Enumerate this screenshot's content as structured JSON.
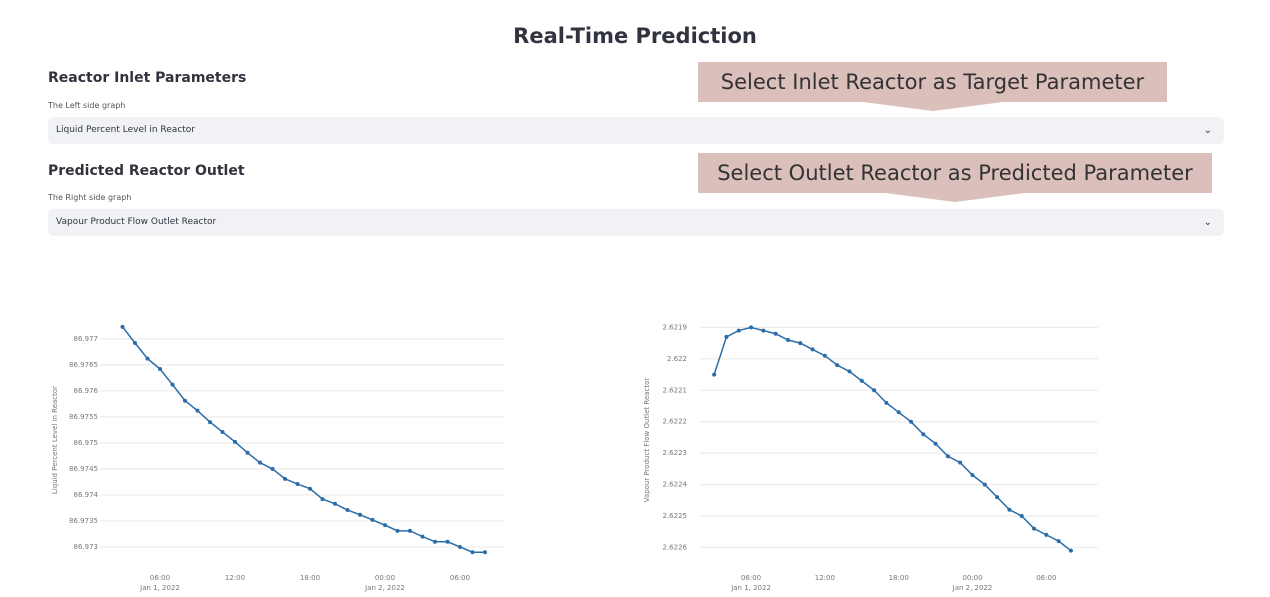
{
  "header": {
    "title": "Real-Time Prediction"
  },
  "sections": [
    {
      "heading": "Reactor Inlet Parameters",
      "caption": "The Left side graph",
      "selected": "Liquid Percent Level in Reactor",
      "callout": "Select Inlet Reactor as Target Parameter"
    },
    {
      "heading": "Predicted Reactor Outlet",
      "caption": "The Right side graph",
      "selected": "Vapour Product Flow Outlet Reactor",
      "callout": "Select Outlet Reactor as Predicted Parameter"
    }
  ],
  "chart_data": [
    {
      "type": "line",
      "y_label": "Liquid Percent Level in Reactor",
      "color": "#2a6ca8",
      "grid": true,
      "x": [
        "2022-01-01 03:00",
        "2022-01-01 04:00",
        "2022-01-01 05:00",
        "2022-01-01 06:00",
        "2022-01-01 07:00",
        "2022-01-01 08:00",
        "2022-01-01 09:00",
        "2022-01-01 10:00",
        "2022-01-01 11:00",
        "2022-01-01 12:00",
        "2022-01-01 13:00",
        "2022-01-01 14:00",
        "2022-01-01 15:00",
        "2022-01-01 16:00",
        "2022-01-01 17:00",
        "2022-01-01 18:00",
        "2022-01-01 19:00",
        "2022-01-01 20:00",
        "2022-01-01 21:00",
        "2022-01-01 22:00",
        "2022-01-01 23:00",
        "2022-01-02 00:00",
        "2022-01-02 01:00",
        "2022-01-02 02:00",
        "2022-01-02 03:00",
        "2022-01-02 04:00",
        "2022-01-02 05:00",
        "2022-01-02 06:00",
        "2022-01-02 07:00",
        "2022-01-02 08:00"
      ],
      "values": [
        86.97723,
        86.97692,
        86.97662,
        86.97642,
        86.97612,
        86.97581,
        86.97562,
        86.9754,
        86.97521,
        86.97502,
        86.97481,
        86.97462,
        86.9745,
        86.97431,
        86.97421,
        86.97412,
        86.97392,
        86.97383,
        86.97371,
        86.97362,
        86.97352,
        86.97342,
        86.97331,
        86.97331,
        86.9732,
        86.9731,
        86.9731,
        86.973,
        86.9729,
        86.9729
      ],
      "xlim": [
        "2022-01-01 01:12",
        "2022-01-02 09:36"
      ],
      "xticks": [
        {
          "value": "2022-01-01 06:00",
          "label": "06:00",
          "sublabel": "Jan 1, 2022"
        },
        {
          "value": "2022-01-01 12:00",
          "label": "12:00"
        },
        {
          "value": "2022-01-01 18:00",
          "label": "18:00"
        },
        {
          "value": "2022-01-02 00:00",
          "label": "00:00",
          "sublabel": "Jan 2, 2022"
        },
        {
          "value": "2022-01-02 06:00",
          "label": "06:00"
        }
      ],
      "ylim": [
        86.97275,
        86.9774
      ],
      "yticks": [
        86.973,
        86.9735,
        86.974,
        86.9745,
        86.975,
        86.9755,
        86.976,
        86.9765,
        86.977
      ]
    },
    {
      "type": "line",
      "y_label": "Vapour Product Flow Outlet Reactor",
      "color": "#2a6ca8",
      "grid": true,
      "x": [
        "2022-01-01 03:00",
        "2022-01-01 04:00",
        "2022-01-01 05:00",
        "2022-01-01 06:00",
        "2022-01-01 07:00",
        "2022-01-01 08:00",
        "2022-01-01 09:00",
        "2022-01-01 10:00",
        "2022-01-01 11:00",
        "2022-01-01 12:00",
        "2022-01-01 13:00",
        "2022-01-01 14:00",
        "2022-01-01 15:00",
        "2022-01-01 16:00",
        "2022-01-01 17:00",
        "2022-01-01 18:00",
        "2022-01-01 19:00",
        "2022-01-01 20:00",
        "2022-01-01 21:00",
        "2022-01-01 22:00",
        "2022-01-01 23:00",
        "2022-01-02 00:00",
        "2022-01-02 01:00",
        "2022-01-02 02:00",
        "2022-01-02 03:00",
        "2022-01-02 04:00",
        "2022-01-02 05:00",
        "2022-01-02 06:00",
        "2022-01-02 07:00",
        "2022-01-02 08:00"
      ],
      "values": [
        2.62205,
        2.62193,
        2.62191,
        2.6219,
        2.62191,
        2.62192,
        2.62194,
        2.62195,
        2.62197,
        2.62199,
        2.62202,
        2.62204,
        2.62207,
        2.6221,
        2.62214,
        2.62217,
        2.6222,
        2.62224,
        2.62227,
        2.62231,
        2.62233,
        2.62237,
        2.6224,
        2.62244,
        2.62248,
        2.6225,
        2.62254,
        2.62256,
        2.62258,
        2.62261
      ],
      "xlim": [
        "2022-01-01 01:51",
        "2022-01-02 10:12"
      ],
      "xticks": [
        {
          "value": "2022-01-01 06:00",
          "label": "06:00",
          "sublabel": "Jan 1, 2022"
        },
        {
          "value": "2022-01-01 12:00",
          "label": "12:00"
        },
        {
          "value": "2022-01-01 18:00",
          "label": "18:00"
        },
        {
          "value": "2022-01-02 00:00",
          "label": "00:00",
          "sublabel": "Jan 2, 2022"
        },
        {
          "value": "2022-01-02 06:00",
          "label": "06:00"
        }
      ],
      "ylim": [
        2.62264,
        2.62187
      ],
      "yticks": [
        2.6219,
        2.622,
        2.6221,
        2.6222,
        2.6223,
        2.6224,
        2.6225,
        2.6226
      ]
    }
  ]
}
